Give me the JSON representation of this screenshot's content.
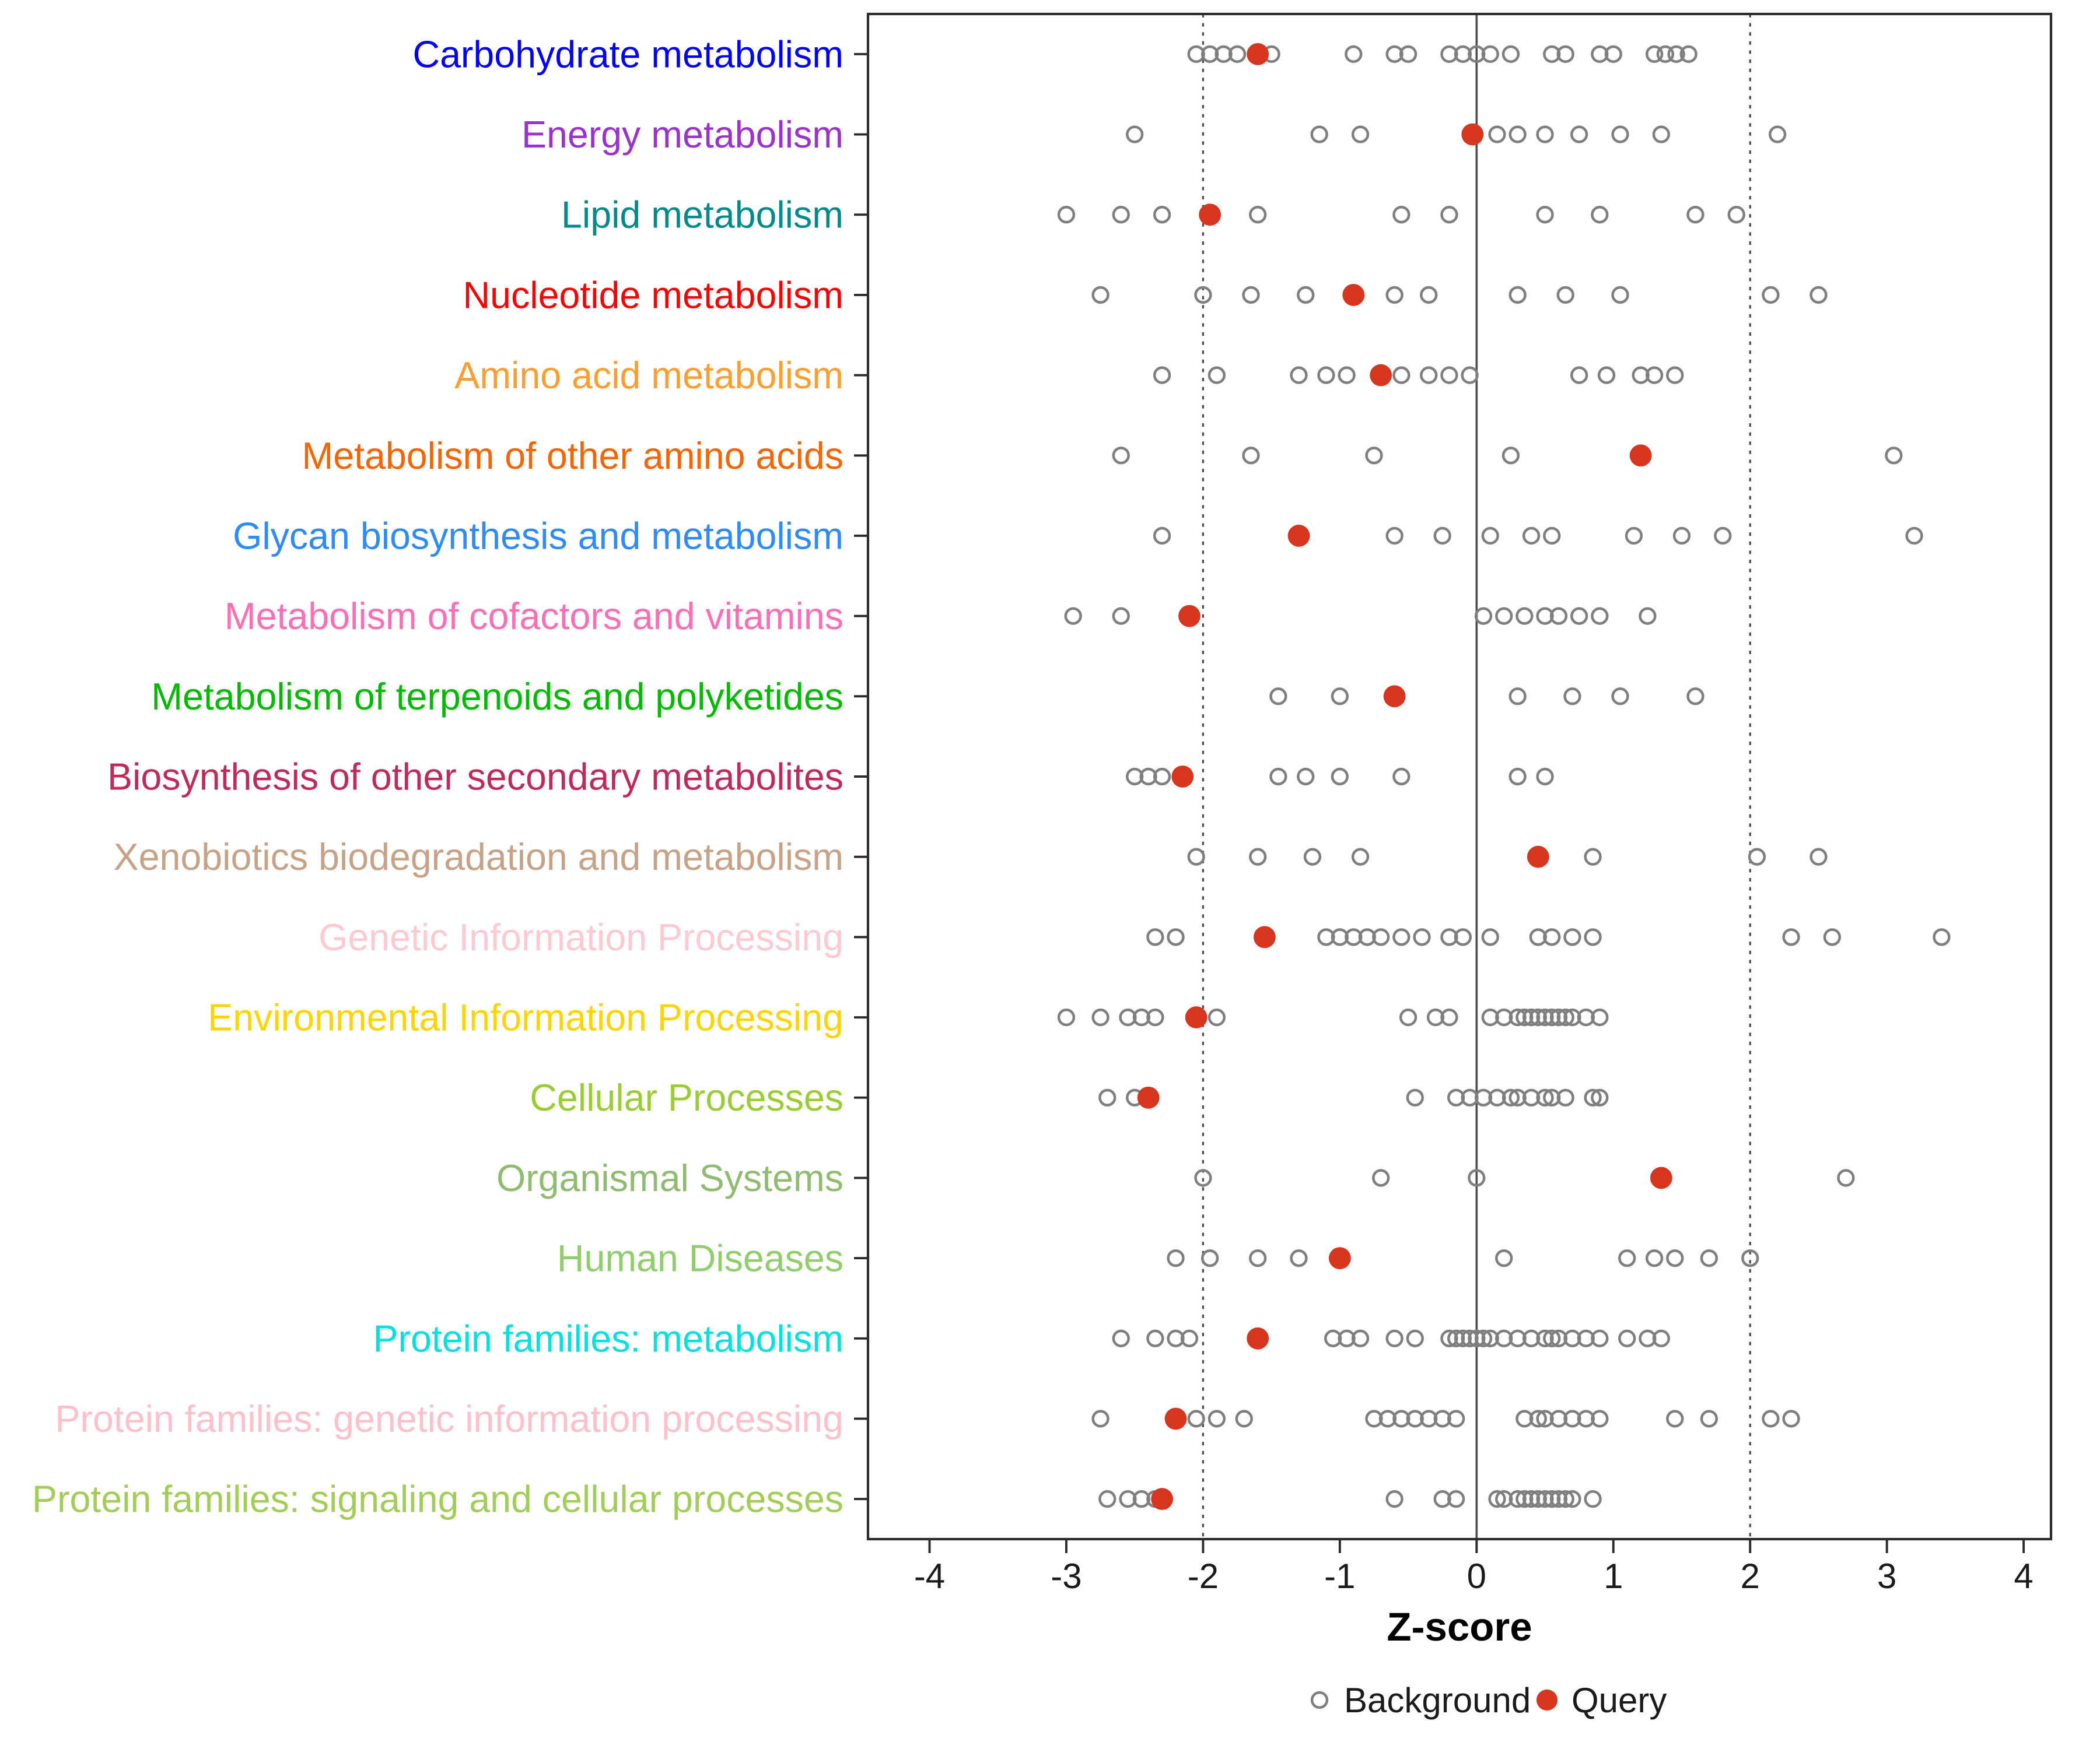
{
  "legend": {
    "background_label": "Background",
    "query_label": "Query"
  },
  "colors": {
    "query": "#D7351D",
    "background_stroke": "#7F7F7F",
    "reference_line": "#4D4D4D",
    "panel_border": "#2B2B2B",
    "axis_text": "#1A1A1A"
  },
  "chart_data": {
    "type": "scatter",
    "title": "",
    "xlabel": "Z-score",
    "ylabel": "",
    "xlim": [
      -4.45,
      4.2
    ],
    "x_ticks": [
      -4,
      -3,
      -2,
      -1,
      0,
      1,
      2,
      3,
      4
    ],
    "reference_lines": {
      "solid": [
        0
      ],
      "dotted": [
        -2,
        2
      ]
    },
    "legend_position": "bottom",
    "grid": false,
    "series_names": [
      "Background",
      "Query"
    ],
    "rows": [
      {
        "label": "Carbohydrate metabolism",
        "color": "#0000FE",
        "query": -1.6,
        "background": [
          -2.05,
          -1.95,
          -1.85,
          -1.75,
          -1.5,
          -0.9,
          -0.6,
          -0.5,
          -0.2,
          -0.1,
          0.0,
          0.1,
          0.25,
          0.55,
          0.65,
          0.9,
          1.0,
          1.3,
          1.38,
          1.46,
          1.55
        ]
      },
      {
        "label": "Energy metabolism",
        "color": "#9A32CD",
        "query": -0.03,
        "background": [
          -2.5,
          -1.15,
          -0.85,
          0.15,
          0.3,
          0.5,
          0.75,
          1.05,
          1.35,
          2.2
        ]
      },
      {
        "label": "Lipid metabolism",
        "color": "#008B8B",
        "query": -1.95,
        "background": [
          -3.0,
          -2.6,
          -2.3,
          -1.6,
          -0.55,
          -0.2,
          0.5,
          0.9,
          1.6,
          1.9
        ]
      },
      {
        "label": "Nucleotide metabolism",
        "color": "#FE0000",
        "query": -0.9,
        "background": [
          -2.75,
          -2.0,
          -1.65,
          -1.25,
          -0.6,
          -0.35,
          0.3,
          0.65,
          1.05,
          2.15,
          2.5
        ]
      },
      {
        "label": "Amino acid metabolism",
        "color": "#FF9E2C",
        "query": -0.7,
        "background": [
          -2.3,
          -1.9,
          -1.3,
          -1.1,
          -0.95,
          -0.55,
          -0.35,
          -0.2,
          -0.05,
          0.75,
          0.95,
          1.2,
          1.3,
          1.45
        ]
      },
      {
        "label": "Metabolism of other amino acids",
        "color": "#F96400",
        "query": 1.2,
        "background": [
          -2.6,
          -1.65,
          -0.75,
          0.25,
          3.05
        ]
      },
      {
        "label": "Glycan biosynthesis and metabolism",
        "color": "#2E8BFD",
        "query": -1.3,
        "background": [
          -2.3,
          -0.6,
          -0.25,
          0.1,
          0.4,
          0.55,
          1.15,
          1.5,
          1.8,
          3.2
        ]
      },
      {
        "label": "Metabolism of cofactors and vitamins",
        "color": "#FF6EB4",
        "query": -2.1,
        "background": [
          -2.95,
          -2.6,
          0.05,
          0.2,
          0.35,
          0.5,
          0.6,
          0.75,
          0.9,
          1.25
        ]
      },
      {
        "label": "Metabolism of terpenoids and polyketides",
        "color": "#00BB00",
        "query": -0.6,
        "background": [
          -1.45,
          -1.0,
          0.3,
          0.7,
          1.05,
          1.6
        ]
      },
      {
        "label": "Biosynthesis of other secondary metabolites",
        "color": "#C02A58",
        "query": -2.15,
        "background": [
          -2.5,
          -2.4,
          -2.3,
          -1.45,
          -1.25,
          -1.0,
          -0.55,
          0.3,
          0.5
        ]
      },
      {
        "label": "Xenobiotics biodegradation and metabolism",
        "color": "#C8A287",
        "query": 0.45,
        "background": [
          -2.05,
          -1.6,
          -1.2,
          -0.85,
          0.85,
          2.05,
          2.5
        ]
      },
      {
        "label": "Genetic Information Processing",
        "color": "#FFC9D2",
        "query": -1.55,
        "background": [
          -2.35,
          -2.2,
          -1.1,
          -1.0,
          -0.9,
          -0.8,
          -0.7,
          -0.55,
          -0.4,
          -0.2,
          -0.1,
          0.1,
          0.45,
          0.55,
          0.7,
          0.85,
          2.3,
          2.6,
          3.4
        ]
      },
      {
        "label": "Environmental Information Processing",
        "color": "#FFD400",
        "query": -2.05,
        "background": [
          -3.0,
          -2.75,
          -2.55,
          -2.45,
          -2.35,
          -1.9,
          -0.5,
          -0.3,
          -0.2,
          0.1,
          0.2,
          0.3,
          0.35,
          0.4,
          0.45,
          0.5,
          0.55,
          0.6,
          0.65,
          0.7,
          0.8,
          0.9
        ]
      },
      {
        "label": "Cellular Processes",
        "color": "#9ACD32",
        "query": -2.4,
        "background": [
          -2.7,
          -2.5,
          -0.45,
          -0.15,
          -0.05,
          0.05,
          0.15,
          0.25,
          0.3,
          0.4,
          0.5,
          0.55,
          0.65,
          0.85,
          0.9
        ]
      },
      {
        "label": "Organismal Systems",
        "color": "#8FBC6E",
        "query": 1.35,
        "background": [
          -2.0,
          -0.7,
          0.0,
          2.7
        ]
      },
      {
        "label": "Human Diseases",
        "color": "#90CD6B",
        "query": -1.0,
        "background": [
          -2.2,
          -1.95,
          -1.6,
          -1.3,
          0.2,
          1.1,
          1.3,
          1.45,
          1.7,
          2.0
        ]
      },
      {
        "label": "Protein families: metabolism",
        "color": "#00E2E2",
        "query": -1.6,
        "background": [
          -2.6,
          -2.35,
          -2.2,
          -2.1,
          -1.05,
          -0.95,
          -0.85,
          -0.6,
          -0.45,
          -0.2,
          -0.15,
          -0.1,
          -0.05,
          0.0,
          0.05,
          0.1,
          0.2,
          0.3,
          0.4,
          0.5,
          0.55,
          0.6,
          0.7,
          0.8,
          0.9,
          1.1,
          1.25,
          1.35
        ]
      },
      {
        "label": "Protein families: genetic information processing",
        "color": "#FFC0CB",
        "query": -2.2,
        "background": [
          -2.75,
          -2.05,
          -1.9,
          -1.7,
          -0.75,
          -0.65,
          -0.55,
          -0.45,
          -0.35,
          -0.25,
          -0.15,
          0.35,
          0.45,
          0.5,
          0.6,
          0.7,
          0.8,
          0.9,
          1.45,
          1.7,
          2.15,
          2.3
        ]
      },
      {
        "label": "Protein families: signaling and cellular processes",
        "color": "#A3CE56",
        "query": -2.3,
        "background": [
          -2.7,
          -2.55,
          -2.45,
          -2.35,
          -0.6,
          -0.25,
          -0.15,
          0.15,
          0.2,
          0.3,
          0.35,
          0.4,
          0.45,
          0.5,
          0.55,
          0.6,
          0.65,
          0.7,
          0.85
        ]
      }
    ]
  }
}
